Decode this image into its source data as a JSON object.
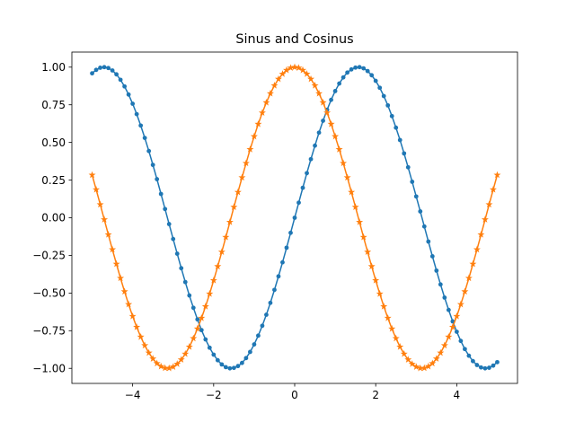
{
  "chart_data": {
    "type": "line",
    "title": "Sinus and Cosinus",
    "xlabel": "",
    "ylabel": "",
    "xlim": [
      -5.5,
      5.5
    ],
    "ylim": [
      -1.1,
      1.1
    ],
    "x_ticks": [
      -4,
      -2,
      0,
      2,
      4
    ],
    "x_tick_labels": [
      "−4",
      "−2",
      "0",
      "2",
      "4"
    ],
    "y_ticks": [
      -1.0,
      -0.75,
      -0.5,
      -0.25,
      0.0,
      0.25,
      0.5,
      0.75,
      1.0
    ],
    "y_tick_labels": [
      "−1.00",
      "−0.75",
      "−0.50",
      "−0.25",
      "0.00",
      "0.25",
      "0.50",
      "0.75",
      "1.00"
    ],
    "grid": false,
    "legend": "none",
    "x": [
      -5.0,
      -4.9,
      -4.8,
      -4.7,
      -4.6,
      -4.5,
      -4.4,
      -4.3,
      -4.2,
      -4.1,
      -4.0,
      -3.9,
      -3.8,
      -3.7,
      -3.6,
      -3.5,
      -3.4,
      -3.3,
      -3.2,
      -3.1,
      -3.0,
      -2.9,
      -2.8,
      -2.7,
      -2.6,
      -2.5,
      -2.4,
      -2.3,
      -2.2,
      -2.1,
      -2.0,
      -1.9,
      -1.8,
      -1.7,
      -1.6,
      -1.5,
      -1.4,
      -1.3,
      -1.2,
      -1.1,
      -1.0,
      -0.9,
      -0.8,
      -0.7,
      -0.6,
      -0.5,
      -0.4,
      -0.3,
      -0.2,
      -0.1,
      0.0,
      0.1,
      0.2,
      0.3,
      0.4,
      0.5,
      0.6,
      0.7,
      0.8,
      0.9,
      1.0,
      1.1,
      1.2,
      1.3,
      1.4,
      1.5,
      1.6,
      1.7,
      1.8,
      1.9,
      2.0,
      2.1,
      2.2,
      2.3,
      2.4,
      2.5,
      2.6,
      2.7,
      2.8,
      2.9,
      3.0,
      3.1,
      3.2,
      3.3,
      3.4,
      3.5,
      3.6,
      3.7,
      3.8,
      3.9,
      4.0,
      4.1,
      4.2,
      4.3,
      4.4,
      4.5,
      4.6,
      4.7,
      4.8,
      4.9,
      5.0
    ],
    "series": [
      {
        "color": "#1f77b4",
        "marker": "dot",
        "values": [
          0.959,
          0.982,
          0.996,
          1.0,
          0.994,
          0.978,
          0.952,
          0.916,
          0.872,
          0.818,
          0.757,
          0.688,
          0.612,
          0.53,
          0.443,
          0.351,
          0.256,
          0.158,
          0.058,
          -0.042,
          -0.141,
          -0.239,
          -0.335,
          -0.427,
          -0.516,
          -0.598,
          -0.675,
          -0.746,
          -0.808,
          -0.863,
          -0.909,
          -0.946,
          -0.974,
          -0.992,
          -1.0,
          -0.997,
          -0.985,
          -0.964,
          -0.932,
          -0.891,
          -0.841,
          -0.783,
          -0.717,
          -0.644,
          -0.565,
          -0.479,
          -0.389,
          -0.296,
          -0.199,
          -0.1,
          0.0,
          0.1,
          0.199,
          0.296,
          0.389,
          0.479,
          0.565,
          0.644,
          0.717,
          0.783,
          0.841,
          0.891,
          0.932,
          0.964,
          0.985,
          0.997,
          1.0,
          0.992,
          0.974,
          0.946,
          0.909,
          0.863,
          0.808,
          0.746,
          0.675,
          0.598,
          0.516,
          0.427,
          0.335,
          0.239,
          0.141,
          0.042,
          -0.058,
          -0.158,
          -0.256,
          -0.351,
          -0.443,
          -0.53,
          -0.612,
          -0.688,
          -0.757,
          -0.818,
          -0.872,
          -0.916,
          -0.952,
          -0.978,
          -0.994,
          -1.0,
          -0.996,
          -0.982,
          -0.959
        ]
      },
      {
        "color": "#ff7f0e",
        "marker": "star",
        "values": [
          0.284,
          0.187,
          0.088,
          -0.012,
          -0.112,
          -0.211,
          -0.307,
          -0.401,
          -0.49,
          -0.575,
          -0.654,
          -0.726,
          -0.791,
          -0.848,
          -0.897,
          -0.936,
          -0.967,
          -0.987,
          -0.998,
          -0.999,
          -0.99,
          -0.971,
          -0.942,
          -0.904,
          -0.857,
          -0.801,
          -0.737,
          -0.666,
          -0.589,
          -0.505,
          -0.416,
          -0.323,
          -0.227,
          -0.129,
          -0.029,
          0.071,
          0.17,
          0.267,
          0.362,
          0.454,
          0.54,
          0.622,
          0.697,
          0.765,
          0.825,
          0.878,
          0.921,
          0.955,
          0.98,
          0.995,
          1.0,
          0.995,
          0.98,
          0.955,
          0.921,
          0.878,
          0.825,
          0.765,
          0.697,
          0.622,
          0.54,
          0.454,
          0.362,
          0.267,
          0.17,
          0.071,
          -0.029,
          -0.129,
          -0.227,
          -0.323,
          -0.416,
          -0.505,
          -0.589,
          -0.666,
          -0.737,
          -0.801,
          -0.857,
          -0.904,
          -0.942,
          -0.971,
          -0.99,
          -0.999,
          -0.998,
          -0.987,
          -0.967,
          -0.936,
          -0.897,
          -0.848,
          -0.791,
          -0.726,
          -0.654,
          -0.575,
          -0.49,
          -0.401,
          -0.307,
          -0.211,
          -0.112,
          -0.012,
          0.088,
          0.187,
          0.284
        ]
      }
    ]
  }
}
